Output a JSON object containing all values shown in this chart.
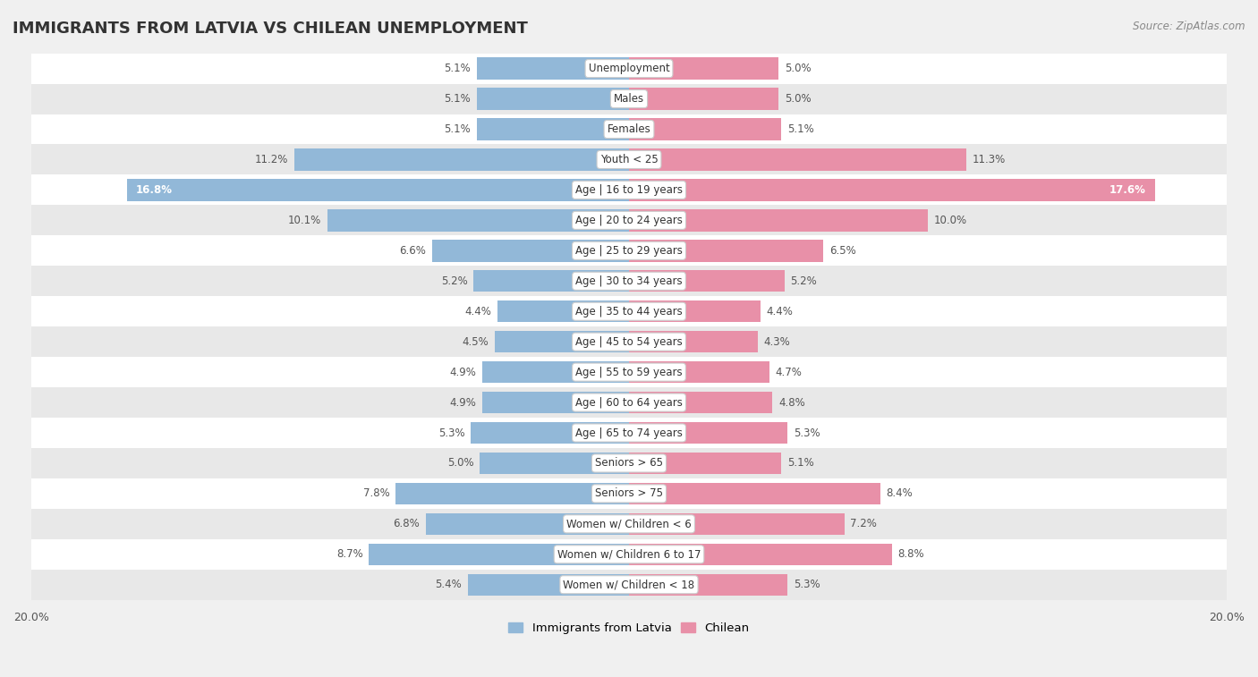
{
  "title": "IMMIGRANTS FROM LATVIA VS CHILEAN UNEMPLOYMENT",
  "source": "Source: ZipAtlas.com",
  "categories": [
    "Unemployment",
    "Males",
    "Females",
    "Youth < 25",
    "Age | 16 to 19 years",
    "Age | 20 to 24 years",
    "Age | 25 to 29 years",
    "Age | 30 to 34 years",
    "Age | 35 to 44 years",
    "Age | 45 to 54 years",
    "Age | 55 to 59 years",
    "Age | 60 to 64 years",
    "Age | 65 to 74 years",
    "Seniors > 65",
    "Seniors > 75",
    "Women w/ Children < 6",
    "Women w/ Children 6 to 17",
    "Women w/ Children < 18"
  ],
  "latvia_values": [
    5.1,
    5.1,
    5.1,
    11.2,
    16.8,
    10.1,
    6.6,
    5.2,
    4.4,
    4.5,
    4.9,
    4.9,
    5.3,
    5.0,
    7.8,
    6.8,
    8.7,
    5.4
  ],
  "chilean_values": [
    5.0,
    5.0,
    5.1,
    11.3,
    17.6,
    10.0,
    6.5,
    5.2,
    4.4,
    4.3,
    4.7,
    4.8,
    5.3,
    5.1,
    8.4,
    7.2,
    8.8,
    5.3
  ],
  "latvia_color": "#92b8d8",
  "chilean_color": "#e890a8",
  "background_color": "#f0f0f0",
  "row_light": "#ffffff",
  "row_dark": "#e8e8e8",
  "xlim": 20.0,
  "bar_height": 0.72,
  "label_fontsize": 8.5,
  "category_fontsize": 8.5,
  "title_fontsize": 13
}
